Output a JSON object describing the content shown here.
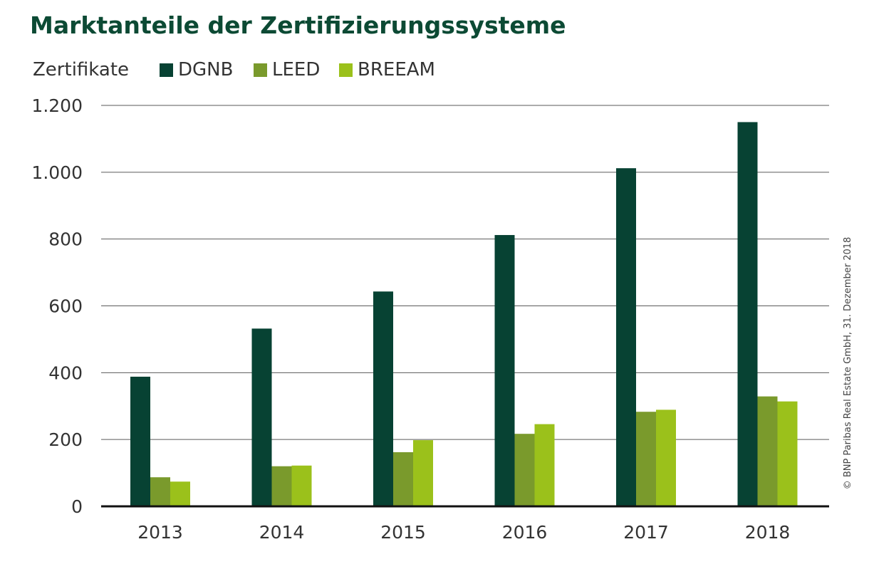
{
  "colors": {
    "DGNB": "#074233",
    "LEED": "#7a9a2c",
    "BREEAM": "#9bc11b",
    "title": "#0c4a34"
  },
  "chart_data": {
    "type": "bar",
    "title": "Marktanteile der Zertifizierungssysteme",
    "legend_title": "Zertifikate",
    "legend_position": "top-left",
    "categories": [
      "2013",
      "2014",
      "2015",
      "2016",
      "2017",
      "2018"
    ],
    "series": [
      {
        "name": "DGNB",
        "values": [
          388,
          532,
          643,
          812,
          1012,
          1150
        ]
      },
      {
        "name": "LEED",
        "values": [
          87,
          120,
          162,
          217,
          283,
          329
        ]
      },
      {
        "name": "BREEAM",
        "values": [
          74,
          122,
          198,
          246,
          289,
          314
        ]
      }
    ],
    "ylim": [
      0,
      1200
    ],
    "yticks": [
      0,
      200,
      400,
      600,
      800,
      1000,
      1200
    ],
    "ytick_labels": [
      "0",
      "200",
      "400",
      "600",
      "800",
      "1.000",
      "1.200"
    ],
    "grid": true,
    "source": "© BNP Paribas Real Estate GmbH, 31. Dezember 2018"
  }
}
